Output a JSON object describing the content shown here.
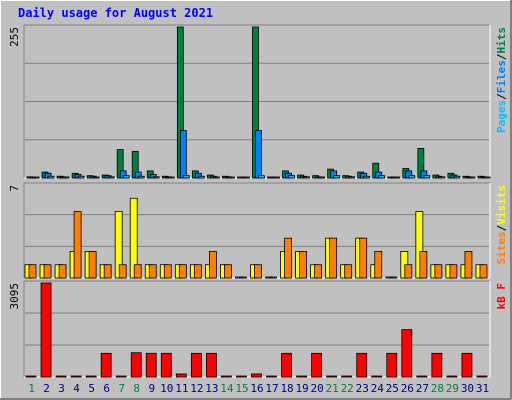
{
  "title": "Daily usage for August 2021",
  "colors": {
    "background": "#c0c0c0",
    "frame_dark": "#808080",
    "frame_light": "#ffffff",
    "title": "#0000ff",
    "hits": "#008040",
    "files": "#0080ff",
    "pages": "#00c0ff",
    "visits": "#ffff00",
    "sites": "#ff8000",
    "kbytes": "#ff0000",
    "weekday_label": "#000080",
    "weekend_label": "#008040",
    "gridline": "#808080"
  },
  "chart_data": [
    {
      "type": "bar",
      "panel": "top",
      "ymax_label": "255",
      "legend": [
        {
          "name": "Pages",
          "color": "#00c0ff"
        },
        {
          "name": "/",
          "color": "#000000"
        },
        {
          "name": "Files",
          "color": "#0080ff"
        },
        {
          "name": "/",
          "color": "#000000"
        },
        {
          "name": "Hits",
          "color": "#008040"
        }
      ],
      "ylim": [
        0,
        255
      ],
      "categories": [
        "1",
        "2",
        "3",
        "4",
        "5",
        "6",
        "7",
        "8",
        "9",
        "10",
        "11",
        "12",
        "13",
        "14",
        "15",
        "16",
        "17",
        "18",
        "19",
        "20",
        "21",
        "22",
        "23",
        "24",
        "25",
        "26",
        "27",
        "28",
        "29",
        "30",
        "31"
      ],
      "weekend_days": [
        "1",
        "7",
        "8",
        "14",
        "15",
        "21",
        "22",
        "28",
        "29"
      ],
      "series": [
        {
          "name": "Hits",
          "values": [
            2,
            10,
            3,
            8,
            4,
            5,
            48,
            45,
            12,
            3,
            255,
            12,
            5,
            3,
            0,
            255,
            0,
            12,
            5,
            4,
            15,
            4,
            10,
            25,
            0,
            16,
            50,
            5,
            8,
            3,
            3
          ]
        },
        {
          "name": "Files",
          "values": [
            1,
            8,
            2,
            6,
            3,
            4,
            12,
            10,
            6,
            2,
            80,
            8,
            3,
            2,
            0,
            80,
            0,
            8,
            3,
            2,
            12,
            3,
            8,
            10,
            0,
            12,
            12,
            3,
            5,
            2,
            2
          ]
        },
        {
          "name": "Pages",
          "values": [
            1,
            3,
            1,
            3,
            1,
            2,
            4,
            3,
            2,
            1,
            4,
            3,
            1,
            1,
            0,
            4,
            0,
            4,
            2,
            1,
            4,
            2,
            3,
            4,
            0,
            4,
            4,
            2,
            3,
            1,
            1
          ]
        }
      ]
    },
    {
      "type": "bar",
      "panel": "middle",
      "ymax_label": "7",
      "legend": [
        {
          "name": "Sites",
          "color": "#ff8000"
        },
        {
          "name": "/",
          "color": "#000000"
        },
        {
          "name": "Visits",
          "color": "#ffff00"
        }
      ],
      "ylim": [
        0,
        7
      ],
      "categories": [
        "1",
        "2",
        "3",
        "4",
        "5",
        "6",
        "7",
        "8",
        "9",
        "10",
        "11",
        "12",
        "13",
        "14",
        "15",
        "16",
        "17",
        "18",
        "19",
        "20",
        "21",
        "22",
        "23",
        "24",
        "25",
        "26",
        "27",
        "28",
        "29",
        "30",
        "31"
      ],
      "series": [
        {
          "name": "Visits",
          "values": [
            1,
            1,
            1,
            2,
            2,
            1,
            5,
            6,
            1,
            1,
            1,
            1,
            1,
            1,
            0,
            1,
            0,
            2,
            2,
            1,
            3,
            1,
            3,
            1,
            0,
            2,
            5,
            1,
            1,
            1,
            1
          ]
        },
        {
          "name": "Sites",
          "values": [
            1,
            1,
            1,
            5,
            2,
            1,
            1,
            1,
            1,
            1,
            1,
            1,
            2,
            1,
            0,
            1,
            0,
            3,
            2,
            1,
            3,
            1,
            3,
            2,
            0,
            1,
            2,
            1,
            1,
            2,
            1
          ]
        }
      ]
    },
    {
      "type": "bar",
      "panel": "bottom",
      "ymax_label": "3095",
      "legend": [
        {
          "name": "kB F",
          "color": "#ff0000"
        }
      ],
      "ylim": [
        0,
        3095
      ],
      "categories": [
        "1",
        "2",
        "3",
        "4",
        "5",
        "6",
        "7",
        "8",
        "9",
        "10",
        "11",
        "12",
        "13",
        "14",
        "15",
        "16",
        "17",
        "18",
        "19",
        "20",
        "21",
        "22",
        "23",
        "24",
        "25",
        "26",
        "27",
        "28",
        "29",
        "30",
        "31"
      ],
      "series": [
        {
          "name": "kB F",
          "values": [
            0,
            3095,
            0,
            0,
            0,
            780,
            0,
            800,
            780,
            780,
            100,
            780,
            780,
            0,
            0,
            100,
            0,
            780,
            0,
            780,
            0,
            0,
            780,
            0,
            780,
            1560,
            0,
            780,
            0,
            780,
            0
          ]
        }
      ]
    }
  ]
}
